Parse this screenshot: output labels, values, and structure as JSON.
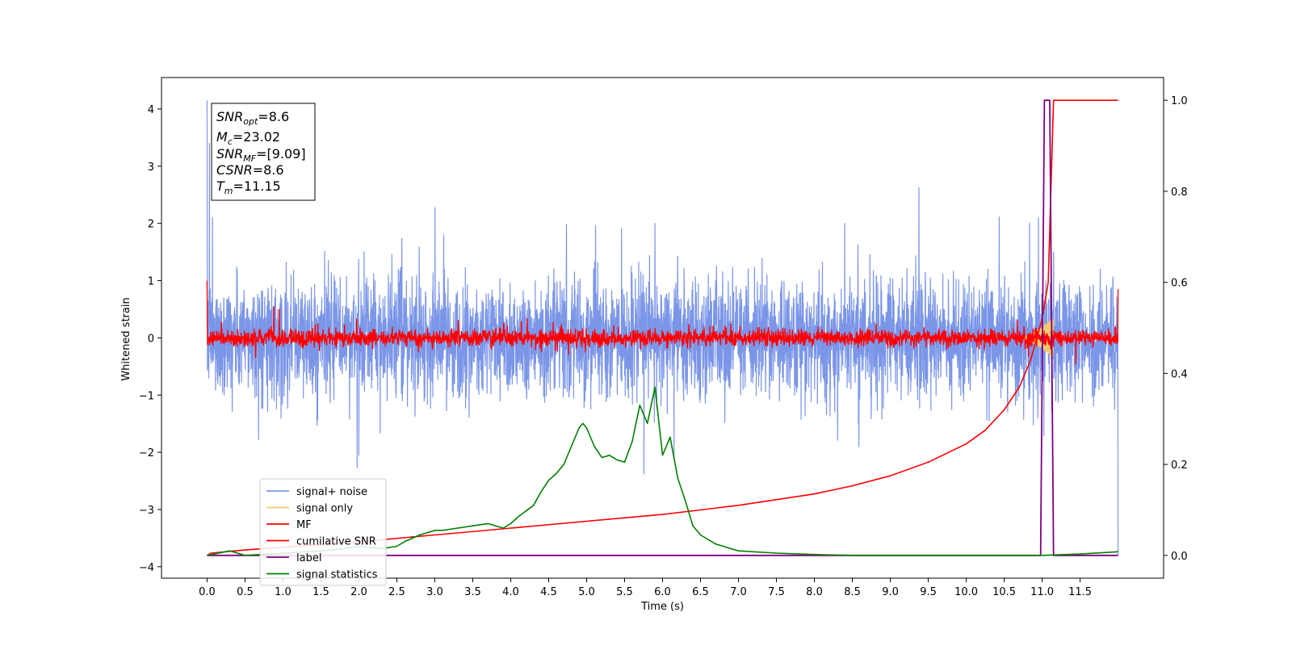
{
  "chart_data": {
    "type": "line",
    "title": "",
    "xlabel": "Time (s)",
    "ylabel": "Whitened strain",
    "ylabel_right": "",
    "xlim": [
      -0.6,
      12.6
    ],
    "ylim": [
      -4.2,
      4.55
    ],
    "ylim_right": [
      -0.05,
      1.05
    ],
    "xticks": [
      0.0,
      0.5,
      1.0,
      1.5,
      2.0,
      2.5,
      3.0,
      3.5,
      4.0,
      4.5,
      5.0,
      5.5,
      6.0,
      6.5,
      7.0,
      7.5,
      8.0,
      8.5,
      9.0,
      9.5,
      10.0,
      10.5,
      11.0,
      11.5
    ],
    "xtick_labels": [
      "0.0",
      "0.5",
      "1.0",
      "1.5",
      "2.0",
      "2.5",
      "3.0",
      "3.5",
      "4.0",
      "4.5",
      "5.0",
      "5.5",
      "6.0",
      "6.5",
      "7.0",
      "7.5",
      "8.0",
      "8.5",
      "9.0",
      "9.5",
      "10.0",
      "10.5",
      "11.0",
      "11.5"
    ],
    "yticks": [
      -4,
      -3,
      -2,
      -1,
      0,
      1,
      2,
      3,
      4
    ],
    "ytick_labels": [
      "−4",
      "−3",
      "−2",
      "−1",
      "0",
      "1",
      "2",
      "3",
      "4"
    ],
    "yticks_right": [
      0.0,
      0.2,
      0.4,
      0.6,
      0.8,
      1.0
    ],
    "ytick_labels_right": [
      "0.0",
      "0.2",
      "0.4",
      "0.6",
      "0.8",
      "1.0"
    ],
    "grid": false,
    "legend_placement": "lower-left",
    "annotation": {
      "snr_opt": {
        "sym": "SNR",
        "sub": "opt",
        "val": "=8.6"
      },
      "mc": {
        "sym": "M",
        "sub": "c",
        "val": "=23.02"
      },
      "snr_mf": {
        "sym": "SNR",
        "sub": "MF",
        "val": "=[9.09]"
      },
      "csnr": {
        "sym": "CSNR",
        "sub": "",
        "val": "=8.6"
      },
      "tm": {
        "sym": "T",
        "sub": "m",
        "val": "=11.15"
      }
    },
    "series": [
      {
        "name": "signal+ noise",
        "axis": "left",
        "color": "#7b96e8",
        "kind": "noise",
        "x_range": [
          0.0,
          12.0
        ],
        "amplitude_typical": 1.0,
        "extremes": [
          {
            "x": 0.0,
            "y": 4.15
          },
          {
            "x": 0.03,
            "y": 3.4
          },
          {
            "x": 0.07,
            "y": 2.1
          },
          {
            "x": 2.0,
            "y": -2.05
          },
          {
            "x": 5.9,
            "y": 2.0
          },
          {
            "x": 6.15,
            "y": 1.9
          },
          {
            "x": 6.15,
            "y": -2.1
          },
          {
            "x": 8.4,
            "y": 2.0
          },
          {
            "x": 10.95,
            "y": 2.1
          },
          {
            "x": 11.15,
            "y": 1.5
          },
          {
            "x": 12.0,
            "y": -2.0
          },
          {
            "x": 12.0,
            "y": -3.8
          }
        ]
      },
      {
        "name": "signal only",
        "axis": "left",
        "color": "#f5c96a",
        "kind": "chirp",
        "x_range": [
          10.7,
          11.15
        ],
        "peak": 0.35
      },
      {
        "name": "MF",
        "axis": "left",
        "color": "#ff0000",
        "kind": "noise",
        "x_range": [
          0.0,
          12.0
        ],
        "amplitude_typical": 0.15,
        "extremes": [
          {
            "x": 0.0,
            "y": 1.0
          },
          {
            "x": 0.88,
            "y": 0.55
          },
          {
            "x": 0.95,
            "y": 0.5
          },
          {
            "x": 12.0,
            "y": 0.85
          }
        ]
      },
      {
        "name": "cumilative SNR",
        "axis": "right",
        "color": "#ff0000",
        "kind": "curve",
        "x": [
          0.0,
          0.05,
          0.5,
          1.0,
          2.0,
          3.0,
          4.0,
          5.0,
          6.0,
          7.0,
          8.0,
          8.5,
          9.0,
          9.5,
          10.0,
          10.25,
          10.5,
          10.7,
          10.85,
          11.0,
          11.08,
          11.15,
          12.0
        ],
        "values": [
          0.0,
          0.005,
          0.012,
          0.018,
          0.03,
          0.045,
          0.06,
          0.075,
          0.09,
          0.11,
          0.135,
          0.153,
          0.175,
          0.205,
          0.245,
          0.275,
          0.32,
          0.37,
          0.43,
          0.52,
          0.6,
          1.0,
          1.0
        ]
      },
      {
        "name": "label",
        "axis": "right",
        "color": "#800080",
        "kind": "curve",
        "x": [
          0.0,
          10.98,
          11.03,
          11.1,
          11.15,
          12.0
        ],
        "values": [
          0.0,
          0.0,
          1.0,
          1.0,
          0.0,
          0.0
        ]
      },
      {
        "name": "signal statistics",
        "axis": "right",
        "color": "#008000",
        "kind": "curve",
        "x": [
          0.0,
          0.3,
          0.5,
          1.0,
          1.5,
          1.8,
          2.0,
          2.3,
          2.5,
          2.6,
          2.8,
          3.0,
          3.1,
          3.3,
          3.5,
          3.7,
          3.9,
          4.0,
          4.1,
          4.3,
          4.4,
          4.5,
          4.6,
          4.7,
          4.8,
          4.9,
          4.95,
          5.0,
          5.1,
          5.2,
          5.3,
          5.4,
          5.5,
          5.6,
          5.7,
          5.8,
          5.9,
          6.0,
          6.1,
          6.2,
          6.3,
          6.4,
          6.5,
          6.7,
          6.9,
          7.0,
          7.5,
          8.0,
          8.5,
          9.0,
          10.0,
          11.0,
          11.5,
          12.0
        ],
        "values": [
          0.0,
          0.01,
          0.0,
          0.005,
          0.01,
          0.015,
          0.02,
          0.015,
          0.02,
          0.03,
          0.045,
          0.055,
          0.055,
          0.06,
          0.065,
          0.07,
          0.06,
          0.07,
          0.085,
          0.11,
          0.14,
          0.165,
          0.18,
          0.2,
          0.24,
          0.28,
          0.29,
          0.28,
          0.24,
          0.215,
          0.22,
          0.21,
          0.205,
          0.25,
          0.33,
          0.29,
          0.37,
          0.22,
          0.26,
          0.17,
          0.12,
          0.065,
          0.045,
          0.025,
          0.015,
          0.01,
          0.005,
          0.002,
          0.0,
          0.0,
          0.0,
          0.0,
          0.003,
          0.008
        ]
      }
    ]
  }
}
